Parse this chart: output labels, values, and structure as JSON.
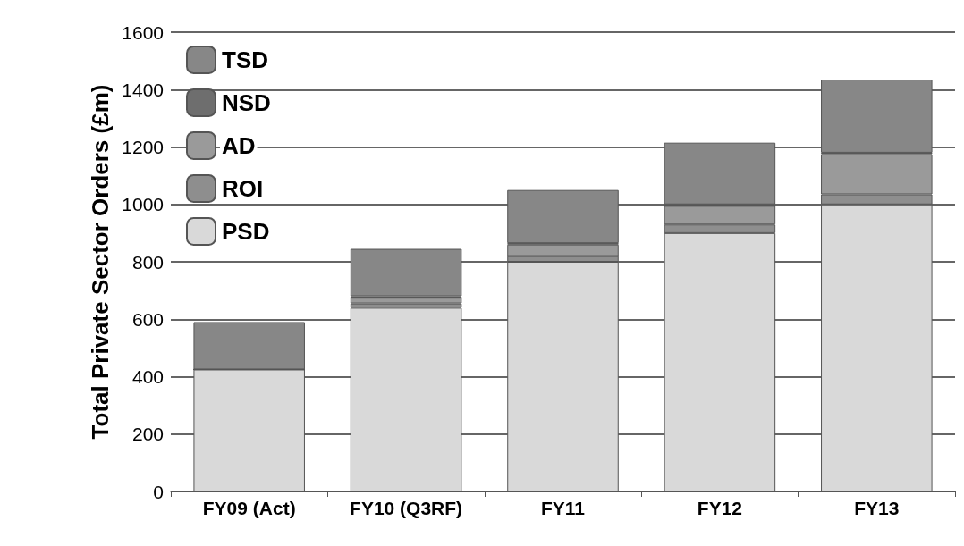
{
  "chart_data": {
    "type": "bar",
    "stacked": true,
    "ylabel": "Total Private Sector Orders (£m)",
    "categories": [
      "FY09 (Act)",
      "FY10 (Q3RF)",
      "FY11",
      "FY12",
      "FY13"
    ],
    "series": [
      {
        "name": "PSD",
        "color": "#d9d9d9",
        "values": [
          425,
          640,
          800,
          900,
          1000
        ]
      },
      {
        "name": "ROI",
        "color": "#8e8e8e",
        "values": [
          0,
          15,
          20,
          30,
          35
        ]
      },
      {
        "name": "AD",
        "color": "#9a9a9a",
        "values": [
          0,
          20,
          40,
          65,
          140
        ]
      },
      {
        "name": "NSD",
        "color": "#6e6e6e",
        "values": [
          0,
          5,
          5,
          5,
          5
        ]
      },
      {
        "name": "TSD",
        "color": "#878787",
        "values": [
          165,
          165,
          185,
          215,
          255
        ]
      }
    ],
    "ylim": [
      0,
      1600
    ],
    "yticks": [
      0,
      200,
      400,
      600,
      800,
      1000,
      1200,
      1400,
      1600
    ],
    "grid": "y",
    "legend": "top left"
  }
}
